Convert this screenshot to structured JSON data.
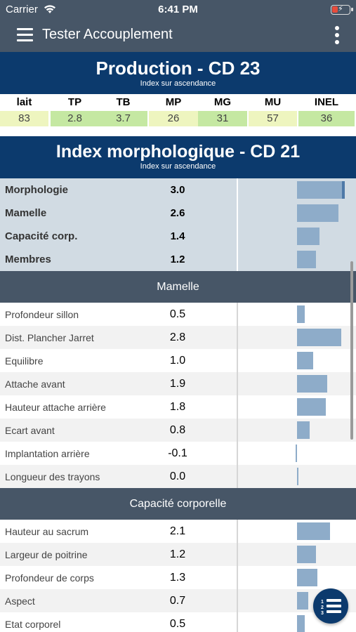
{
  "status_bar": {
    "carrier": "Carrier",
    "time": "6:41 PM"
  },
  "app_bar": {
    "title": "Tester Accouplement"
  },
  "production": {
    "title": "Production - CD 23",
    "subtitle": "Index sur ascendance",
    "columns": [
      "lait",
      "TP",
      "TB",
      "MP",
      "MG",
      "MU",
      "INEL"
    ],
    "values": [
      "83",
      "2.8",
      "3.7",
      "26",
      "31",
      "57",
      "36"
    ],
    "cell_colors": [
      "#eef5bf",
      "#c5e8a2",
      "#c5e8a2",
      "#eef5bf",
      "#c5e8a2",
      "#eef5bf",
      "#c5e8a2"
    ]
  },
  "morphology": {
    "title": "Index morphologique - CD 21",
    "subtitle": "Index sur ascendance",
    "summary": [
      {
        "label": "Morphologie",
        "value": "3.0",
        "bar": 3.0
      },
      {
        "label": "Mamelle",
        "value": "2.6",
        "bar": 2.6
      },
      {
        "label": "Capacité corp.",
        "value": "1.4",
        "bar": 1.4
      },
      {
        "label": "Membres",
        "value": "1.2",
        "bar": 1.2
      }
    ]
  },
  "groups": [
    {
      "title": "Mamelle",
      "rows": [
        {
          "label": "Profondeur sillon",
          "value": "0.5",
          "bar": 0.5
        },
        {
          "label": "Dist. Plancher Jarret",
          "value": "2.8",
          "bar": 2.8
        },
        {
          "label": "Equilibre",
          "value": "1.0",
          "bar": 1.0
        },
        {
          "label": "Attache avant",
          "value": "1.9",
          "bar": 1.9
        },
        {
          "label": "Hauteur attache arrière",
          "value": "1.8",
          "bar": 1.8
        },
        {
          "label": "Ecart avant",
          "value": "0.8",
          "bar": 0.8
        },
        {
          "label": "Implantation arrière",
          "value": "-0.1",
          "bar": -0.1
        },
        {
          "label": "Longueur des trayons",
          "value": "0.0",
          "bar": 0.0
        }
      ]
    },
    {
      "title": "Capacité corporelle",
      "rows": [
        {
          "label": "Hauteur au sacrum",
          "value": "2.1",
          "bar": 2.1
        },
        {
          "label": "Largeur de poitrine",
          "value": "1.2",
          "bar": 1.2
        },
        {
          "label": "Profondeur de corps",
          "value": "1.3",
          "bar": 1.3
        },
        {
          "label": "Aspect",
          "value": "0.7",
          "bar": 0.7
        },
        {
          "label": "Etat corporel",
          "value": "0.5",
          "bar": 0.5
        }
      ]
    }
  ],
  "colors": {
    "header_blue": "#0c3a6d",
    "group_gray": "#475667",
    "bar_fill": "#8eacc9",
    "bar_cap": "#4e79a7",
    "summary_bg": "#d1dbe3"
  },
  "icons": {
    "menu": "menu-icon",
    "more": "more-vertical-icon",
    "fab": "numbered-list-icon"
  }
}
